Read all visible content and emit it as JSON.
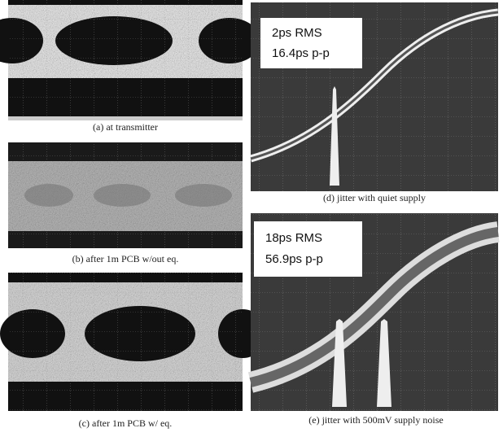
{
  "panels": [
    {
      "caption": "(a) at transmitter"
    },
    {
      "caption": "(b) after 1m PCB w/out eq."
    },
    {
      "caption": "(c) after 1m PCB w/ eq."
    },
    {
      "caption": "(d) jitter with quiet supply",
      "annotation": [
        "2ps RMS",
        "16.4ps p-p"
      ]
    },
    {
      "caption": "(e) jitter with 500mV supply noise",
      "annotation": [
        "18ps RMS",
        "56.9ps p-p"
      ]
    }
  ]
}
